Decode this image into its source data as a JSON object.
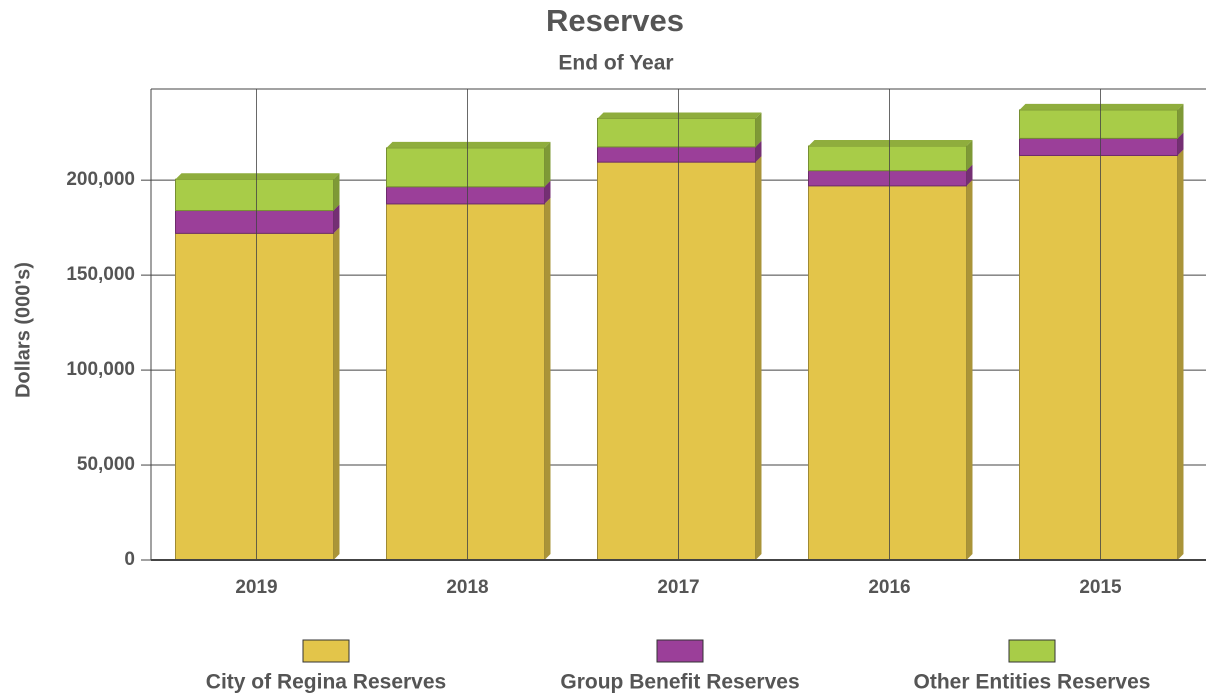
{
  "chart_data": {
    "type": "bar",
    "stacked": true,
    "title": "Reserves",
    "subtitle": "End of Year",
    "y_label": "Dollars (000's)",
    "categories": [
      "2019",
      "2018",
      "2017",
      "2016",
      "2015"
    ],
    "series": [
      {
        "name": "City of Regina Reserves",
        "color": "#e3c54a",
        "values": [
          172000,
          187500,
          209500,
          197000,
          213000
        ]
      },
      {
        "name": "Group Benefit Reserves",
        "color": "#9b3f99",
        "values": [
          12000,
          9000,
          8000,
          8000,
          9000
        ]
      },
      {
        "name": "Other Entities Reserves",
        "color": "#a8cc48",
        "values": [
          16500,
          20500,
          15000,
          13000,
          15000
        ]
      }
    ],
    "ylim": [
      0,
      248000
    ],
    "yticks": [
      0,
      {
        "value": 50000,
        "label": "50,000"
      },
      {
        "value": 100000,
        "label": "100,000"
      },
      {
        "value": 150000,
        "label": "150,000"
      },
      {
        "value": 200000,
        "label": "200,000"
      }
    ],
    "grid": true,
    "legend": "bottom"
  }
}
